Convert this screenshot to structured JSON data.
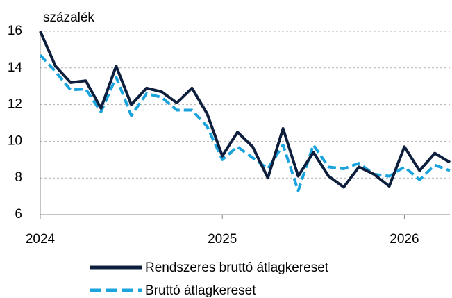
{
  "chart_data": {
    "type": "line",
    "unit_label": "százalék",
    "categories": [
      "2024",
      null,
      null,
      null,
      null,
      null,
      null,
      null,
      null,
      null,
      null,
      null,
      "2025",
      null,
      null,
      null,
      null,
      null,
      null,
      null,
      null,
      null,
      null,
      null,
      "2026",
      null,
      null,
      null
    ],
    "series": [
      {
        "name": "Rendszeres bruttó átlagkereset",
        "color": "#0d1f3c",
        "dash": false,
        "values": [
          16.0,
          14.1,
          13.2,
          13.3,
          11.8,
          14.1,
          12.0,
          12.9,
          12.7,
          12.1,
          12.9,
          11.5,
          9.2,
          10.5,
          9.7,
          8.0,
          10.7,
          8.1,
          9.4,
          8.1,
          7.5,
          8.6,
          8.2,
          7.55,
          9.7,
          8.4,
          9.35,
          8.85
        ]
      },
      {
        "name": "Bruttó átlagkereset",
        "color": "#1ba3dd",
        "dash": true,
        "values": [
          14.7,
          13.8,
          12.8,
          12.85,
          11.6,
          13.5,
          11.4,
          12.6,
          12.4,
          11.7,
          11.7,
          10.8,
          9.0,
          9.7,
          9.1,
          8.5,
          9.8,
          7.3,
          9.8,
          8.6,
          8.5,
          8.8,
          8.2,
          8.1,
          8.6,
          7.9,
          8.7,
          8.4
        ]
      }
    ],
    "ylim": [
      6,
      16
    ],
    "yticks": [
      6,
      8,
      10,
      12,
      14,
      16
    ],
    "grid": true
  }
}
